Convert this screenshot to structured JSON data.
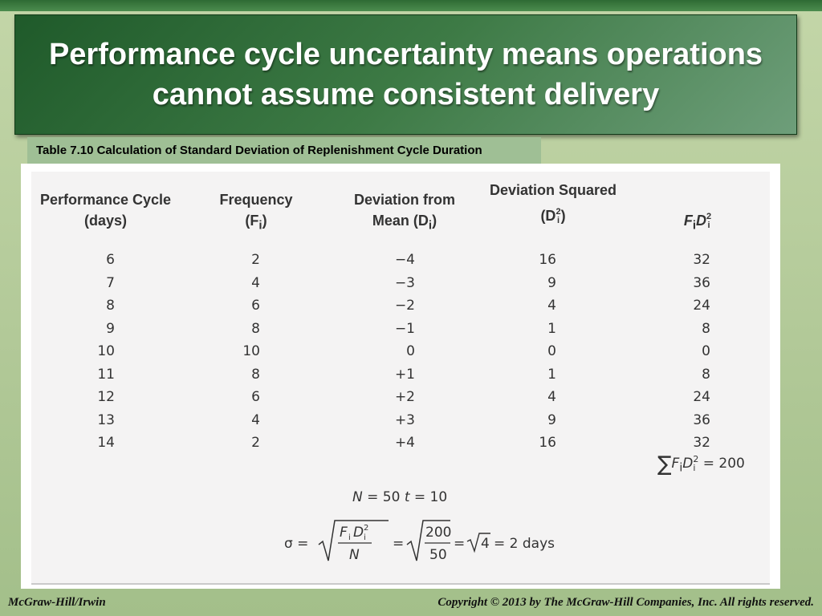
{
  "slide": {
    "title": "Performance cycle uncertainty means operations cannot assume consistent delivery"
  },
  "table": {
    "caption": "Table 7.10 Calculation of Standard Deviation of Replenishment Cycle Duration",
    "headers": {
      "col1_line1": "Performance Cycle",
      "col1_line2": "(days)",
      "col2_line1": "Frequency",
      "col2_var": "(F",
      "col2_sub": "i",
      "col2_close": ")",
      "col3_line1": "Deviation from",
      "col3_line2": "Mean (D",
      "col3_sub": "i",
      "col3_close": ")",
      "col4_line1": "Deviation Squared",
      "col4_var": "(D",
      "col4_sup": "2",
      "col4_sub": "i",
      "col4_close": ")",
      "col5_f": "F",
      "col5_fsub": "i",
      "col5_d": "D",
      "col5_dsup": "2",
      "col5_dsub": "i"
    },
    "rows": [
      {
        "cycle": "6",
        "freq": "2",
        "dev": "−4",
        "dev_sq": "16",
        "fd2": "32"
      },
      {
        "cycle": "7",
        "freq": "4",
        "dev": "−3",
        "dev_sq": "9",
        "fd2": "36"
      },
      {
        "cycle": "8",
        "freq": "6",
        "dev": "−2",
        "dev_sq": "4",
        "fd2": "24"
      },
      {
        "cycle": "9",
        "freq": "8",
        "dev": "−1",
        "dev_sq": "1",
        "fd2": "8"
      },
      {
        "cycle": "10",
        "freq": "10",
        "dev": "0",
        "dev_sq": "0",
        "fd2": "0"
      },
      {
        "cycle": "11",
        "freq": "8",
        "dev": "+1",
        "dev_sq": "1",
        "fd2": "8"
      },
      {
        "cycle": "12",
        "freq": "6",
        "dev": "+2",
        "dev_sq": "4",
        "fd2": "24"
      },
      {
        "cycle": "13",
        "freq": "4",
        "dev": "+3",
        "dev_sq": "9",
        "fd2": "36"
      },
      {
        "cycle": "14",
        "freq": "2",
        "dev": "+4",
        "dev_sq": "16",
        "fd2": "32"
      }
    ],
    "sum": {
      "sigma": "∑",
      "f": "F",
      "fsub": "i",
      "d": "D",
      "dsup": "2",
      "dsub": "i",
      "equals": "= 200"
    },
    "n_line": {
      "n": "N",
      "n_val": "= 50",
      "t": "t",
      "t_val": "= 10"
    },
    "formula": {
      "sigma": "σ =",
      "num_f": "F",
      "num_fsub": "i",
      "num_d": "D",
      "num_dsup": "2",
      "num_dsub": "i",
      "den": "N",
      "eq1": "=",
      "num2": "200",
      "den2": "50",
      "eq2": "=",
      "root_val": "4",
      "result": "= 2 days"
    }
  },
  "footer": {
    "left": "McGraw-Hill/Irwin",
    "right": "Copyright © 2013 by The McGraw-Hill Companies, Inc. All rights reserved."
  }
}
